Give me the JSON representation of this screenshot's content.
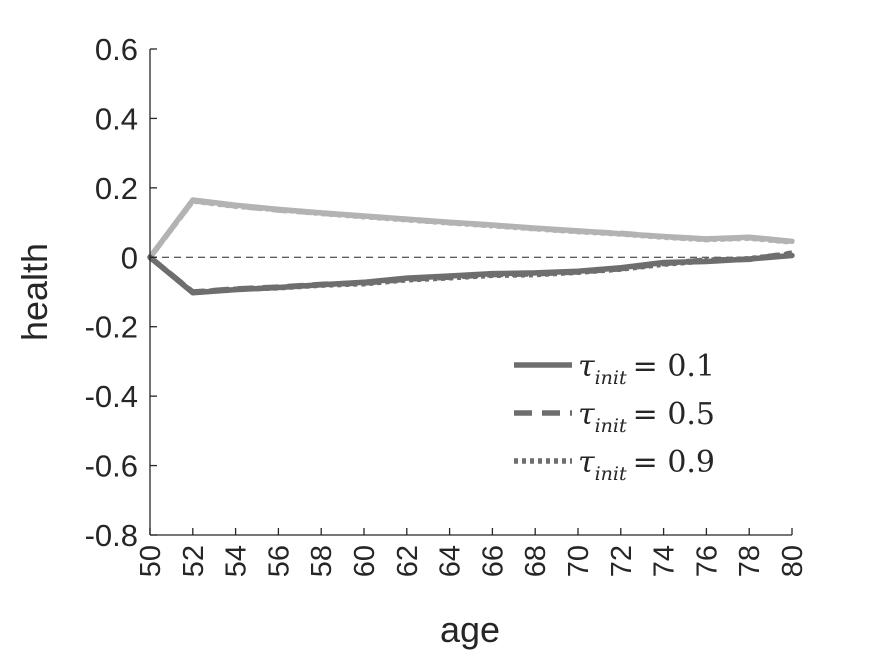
{
  "chart_data": {
    "type": "line",
    "xlabel": "age",
    "ylabel": "health",
    "xlim": [
      50,
      80
    ],
    "ylim": [
      -0.8,
      0.6
    ],
    "xticks": [
      "50",
      "52",
      "54",
      "56",
      "58",
      "60",
      "62",
      "64",
      "66",
      "68",
      "70",
      "72",
      "74",
      "76",
      "78",
      "80"
    ],
    "yticks": [
      "0.6",
      "0.4",
      "0.2",
      "0",
      "-0.2",
      "-0.4",
      "-0.6",
      "-0.8"
    ],
    "reference_line": {
      "y": 0,
      "style": "dashed"
    },
    "legend_position": "bottom-right",
    "legend": [
      {
        "tau": "τ",
        "sub": "init",
        "eq": "= 0.1",
        "style": "solid"
      },
      {
        "tau": "τ",
        "sub": "init",
        "eq": "= 0.5",
        "style": "dashed"
      },
      {
        "tau": "τ",
        "sub": "init",
        "eq": "= 0.9",
        "style": "dotted"
      }
    ],
    "x": [
      50,
      52,
      54,
      56,
      58,
      60,
      62,
      64,
      66,
      68,
      70,
      72,
      74,
      76,
      78,
      80
    ],
    "series": [
      {
        "group": "upper",
        "style": "solid",
        "color": "#b3b3b3",
        "values": [
          0,
          0.165,
          0.15,
          0.138,
          0.128,
          0.119,
          0.11,
          0.101,
          0.093,
          0.084,
          0.076,
          0.068,
          0.06,
          0.053,
          0.058,
          0.046
        ]
      },
      {
        "group": "upper",
        "style": "dashed",
        "color": "#b3b3b3",
        "values": [
          0,
          0.163,
          0.148,
          0.136,
          0.127,
          0.118,
          0.109,
          0.1,
          0.092,
          0.083,
          0.075,
          0.069,
          0.059,
          0.052,
          0.056,
          0.045
        ]
      },
      {
        "group": "upper",
        "style": "dotted",
        "color": "#b3b3b3",
        "values": [
          0,
          0.162,
          0.147,
          0.137,
          0.126,
          0.117,
          0.108,
          0.099,
          0.091,
          0.082,
          0.074,
          0.067,
          0.058,
          0.051,
          0.055,
          0.044
        ]
      },
      {
        "group": "lower",
        "style": "solid",
        "color": "#6e6e6e",
        "values": [
          0,
          -0.102,
          -0.093,
          -0.087,
          -0.079,
          -0.072,
          -0.06,
          -0.054,
          -0.047,
          -0.045,
          -0.04,
          -0.03,
          -0.015,
          -0.012,
          -0.005,
          0.005
        ]
      },
      {
        "group": "lower",
        "style": "dashed",
        "color": "#6e6e6e",
        "values": [
          0,
          -0.1,
          -0.091,
          -0.086,
          -0.078,
          -0.074,
          -0.063,
          -0.057,
          -0.05,
          -0.048,
          -0.042,
          -0.033,
          -0.018,
          -0.008,
          -0.006,
          0.012
        ]
      },
      {
        "group": "lower",
        "style": "dotted",
        "color": "#6e6e6e",
        "values": [
          0,
          -0.101,
          -0.092,
          -0.088,
          -0.08,
          -0.076,
          -0.065,
          -0.059,
          -0.052,
          -0.05,
          -0.043,
          -0.034,
          -0.02,
          -0.01,
          -0.004,
          0.01
        ]
      }
    ]
  }
}
